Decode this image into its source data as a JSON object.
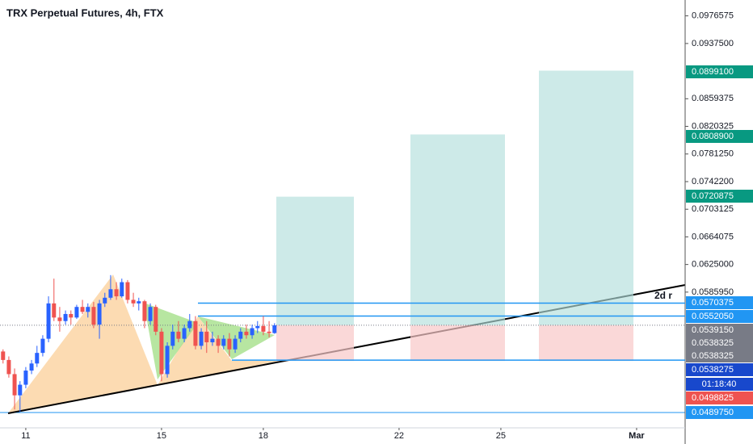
{
  "chart_data": {
    "type": "candlestick",
    "title": "TRX Perpetual Futures, 4h, FTX",
    "up_color": "#2962ff",
    "down_color": "#ef5350",
    "x": [
      10.33,
      10.5,
      10.67,
      10.83,
      11,
      11.17,
      11.33,
      11.5,
      11.67,
      11.83,
      12,
      12.17,
      12.33,
      12.5,
      12.67,
      12.83,
      13,
      13.17,
      13.33,
      13.5,
      13.67,
      13.83,
      14,
      14.17,
      14.33,
      14.5,
      14.67,
      14.83,
      15,
      15.17,
      15.33,
      15.5,
      15.67,
      15.83,
      16,
      16.17,
      16.33,
      16.5,
      16.67,
      16.83,
      17,
      17.17,
      17.33,
      17.5,
      17.67,
      17.83,
      18,
      18.17,
      18.33
    ],
    "open": [
      0.0502,
      0.049,
      0.047,
      0.044,
      0.0455,
      0.0475,
      0.0485,
      0.05,
      0.052,
      0.057,
      0.055,
      0.0545,
      0.0555,
      0.055,
      0.0565,
      0.0558,
      0.0565,
      0.054,
      0.057,
      0.0578,
      0.059,
      0.058,
      0.06,
      0.0575,
      0.057,
      0.0573,
      0.0545,
      0.0565,
      0.053,
      0.047,
      0.051,
      0.053,
      0.052,
      0.0535,
      0.0545,
      0.051,
      0.053,
      0.0515,
      0.052,
      0.051,
      0.052,
      0.0505,
      0.052,
      0.053,
      0.0525,
      0.0535,
      0.0538,
      0.053,
      0.0528
    ],
    "high": [
      0.0505,
      0.0495,
      0.0478,
      0.046,
      0.048,
      0.049,
      0.051,
      0.0525,
      0.058,
      0.0605,
      0.0565,
      0.056,
      0.056,
      0.0568,
      0.0575,
      0.057,
      0.0572,
      0.0575,
      0.0585,
      0.061,
      0.06,
      0.0605,
      0.0603,
      0.0585,
      0.0578,
      0.0575,
      0.057,
      0.0568,
      0.0535,
      0.0515,
      0.054,
      0.0545,
      0.054,
      0.0555,
      0.0552,
      0.0535,
      0.0545,
      0.053,
      0.0525,
      0.0525,
      0.0528,
      0.0525,
      0.0535,
      0.054,
      0.054,
      0.0545,
      0.0552,
      0.0545,
      0.0542
    ],
    "low": [
      0.0485,
      0.0465,
      0.042,
      0.0417,
      0.045,
      0.047,
      0.048,
      0.0495,
      0.0515,
      0.0545,
      0.053,
      0.054,
      0.054,
      0.0548,
      0.0555,
      0.055,
      0.0535,
      0.052,
      0.0565,
      0.0575,
      0.0575,
      0.0578,
      0.057,
      0.0565,
      0.056,
      0.0535,
      0.054,
      0.0525,
      0.046,
      0.0465,
      0.0505,
      0.0515,
      0.0515,
      0.053,
      0.0505,
      0.0505,
      0.05,
      0.051,
      0.05,
      0.0505,
      0.0495,
      0.05,
      0.0515,
      0.052,
      0.052,
      0.0528,
      0.0525,
      0.0522,
      0.0527
    ],
    "close": [
      0.049,
      0.047,
      0.044,
      0.0455,
      0.0475,
      0.0485,
      0.05,
      0.052,
      0.057,
      0.055,
      0.0545,
      0.0555,
      0.055,
      0.0565,
      0.0558,
      0.0565,
      0.054,
      0.057,
      0.0578,
      0.059,
      0.058,
      0.06,
      0.0575,
      0.057,
      0.0573,
      0.0545,
      0.0565,
      0.053,
      0.047,
      0.051,
      0.053,
      0.052,
      0.0535,
      0.0545,
      0.051,
      0.053,
      0.0515,
      0.052,
      0.051,
      0.052,
      0.0505,
      0.052,
      0.053,
      0.0525,
      0.0535,
      0.0538,
      0.053,
      0.0528,
      0.0539
    ],
    "xlim": [
      10.24,
      30.43
    ],
    "xticks": [
      11,
      15,
      18,
      22,
      25,
      {
        "value": 29,
        "label": "Mar"
      }
    ],
    "ylim": [
      0.0394,
      0.0999
    ],
    "yticks": [
      {
        "value": 0.0976575,
        "label": "0.0976575"
      },
      {
        "value": 0.09375,
        "label": "0.0937500"
      },
      {
        "value": 0.0859375,
        "label": "0.0859375"
      },
      {
        "value": 0.0820325,
        "label": "0.0820325"
      },
      {
        "value": 0.078125,
        "label": "0.0781250"
      },
      {
        "value": 0.07422,
        "label": "0.0742200"
      },
      {
        "value": 0.0703125,
        "label": "0.0703125"
      },
      {
        "value": 0.0664075,
        "label": "0.0664075"
      },
      {
        "value": 0.0625,
        "label": "0.0625000"
      },
      {
        "value": 0.058595,
        "label": "0.0585950"
      }
    ],
    "price_badges": [
      {
        "value": 0.08991,
        "label": "0.0899100",
        "color": "#089981"
      },
      {
        "value": 0.08089,
        "label": "0.0808900",
        "color": "#089981"
      },
      {
        "value": 0.0720875,
        "label": "0.0720875",
        "color": "#089981"
      },
      {
        "value": 0.0570375,
        "label": "0.0570375",
        "color": "#2196f3"
      },
      {
        "value": 0.055205,
        "label": "0.0552050",
        "color": "#2196f3"
      },
      {
        "value": 0.053915,
        "label": "0.0539150",
        "color": "#787b86"
      },
      {
        "value": 0.0538325,
        "label": "0.0538325",
        "color": "#787b86"
      },
      {
        "value": 0.0538325,
        "label": "0.0538325",
        "color": "#787b86"
      },
      {
        "value": 0.0538275,
        "label": "0.0538275",
        "color": "#1848cc"
      },
      {
        "value": 0.0498825,
        "label": "0.0498825",
        "color": "#ef5350"
      },
      {
        "value": 0.048975,
        "label": "0.0489750",
        "color": "#2196f3"
      }
    ],
    "countdown": "01:18:40",
    "annotation": "2d r"
  }
}
